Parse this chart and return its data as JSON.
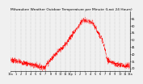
{
  "title": "Milwaukee Weather Outdoor Temperature per Minute (Last 24 Hours)",
  "background_color": "#f0f0f0",
  "plot_bg_color": "#f0f0f0",
  "line_color": "#ff0000",
  "grid_color": "#888888",
  "ylim": [
    28,
    70
  ],
  "ytick_values": [
    30,
    35,
    40,
    45,
    50,
    55,
    60,
    65
  ],
  "num_points": 1440,
  "title_fontsize": 3.2,
  "tick_fontsize": 2.5,
  "hour_labels": [
    "12a",
    "1",
    "2",
    "3",
    "4",
    "5",
    "6",
    "7",
    "8",
    "9",
    "10",
    "11",
    "12p",
    "1",
    "2",
    "3",
    "4",
    "5",
    "6",
    "7",
    "8",
    "9",
    "10",
    "11",
    "12a"
  ]
}
